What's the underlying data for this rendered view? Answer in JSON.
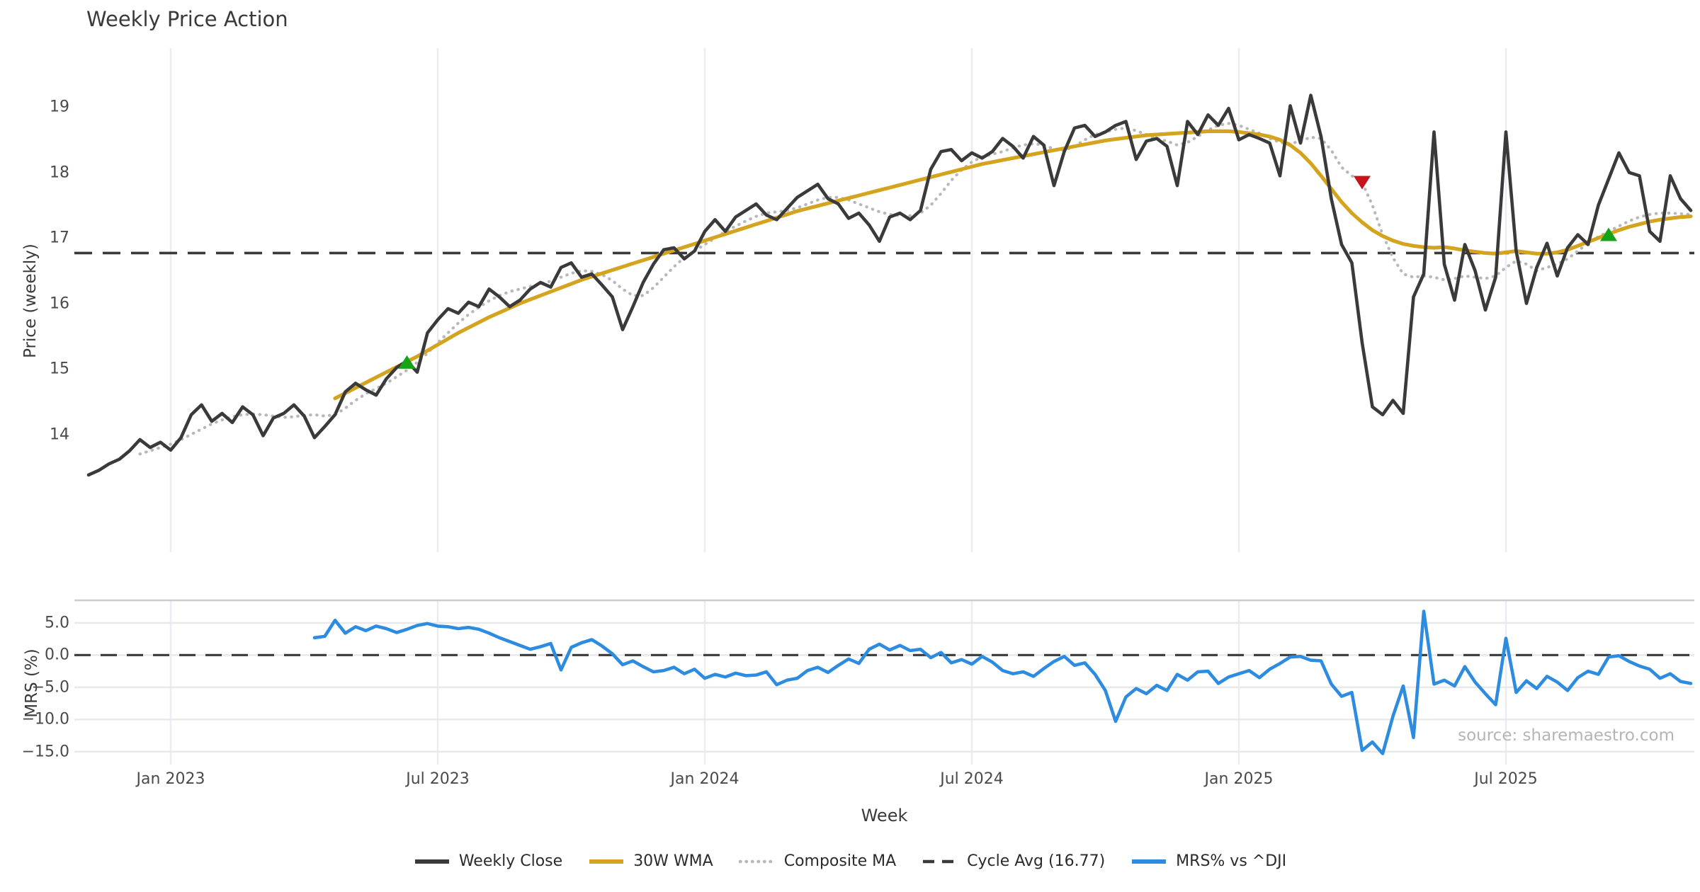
{
  "title": "Weekly Price Action",
  "source_note": "source: sharemaestro.com",
  "colors": {
    "weekly_close": "#3a3a3a",
    "wma_30w": "#d5a41f",
    "composite_ma": "#b8b8b8",
    "cycle_avg": "#3a3a3a",
    "mrs": "#2d8ce0",
    "buy_marker": "#17a317",
    "sell_marker": "#c4151c",
    "grid_vertical": "#ececf1",
    "grid_horizontal": "#e9e9e9",
    "panel_spine": "#cccccc",
    "tick_text": "#4a4a4a",
    "muted_text": "#b5b5b5"
  },
  "chart_data": {
    "type": "line",
    "title": "Weekly Price Action",
    "xlabel": "Week",
    "weeks_total": 157,
    "x_ticks": [
      {
        "index": 8,
        "label": "Jan 2023"
      },
      {
        "index": 34,
        "label": "Jul 2023"
      },
      {
        "index": 60,
        "label": "Jan 2024"
      },
      {
        "index": 86,
        "label": "Jul 2024"
      },
      {
        "index": 112,
        "label": "Jan 2025"
      },
      {
        "index": 138,
        "label": "Jul 2025"
      }
    ],
    "price_panel": {
      "ylabel": "Price (weekly)",
      "ylim": [
        12.2,
        19.9
      ],
      "yticks": [
        {
          "v": 19,
          "label": "19"
        },
        {
          "v": 18,
          "label": "18"
        },
        {
          "v": 17,
          "label": "17"
        },
        {
          "v": 16,
          "label": "16"
        },
        {
          "v": 15,
          "label": "15"
        },
        {
          "v": 14,
          "label": "14"
        }
      ],
      "cycle_avg": 16.77,
      "series": {
        "weekly_close": {
          "name": "Weekly Close",
          "start_index": 0,
          "values": [
            13.38,
            13.45,
            13.55,
            13.62,
            13.75,
            13.92,
            13.8,
            13.88,
            13.76,
            13.95,
            14.3,
            14.45,
            14.2,
            14.32,
            14.18,
            14.42,
            14.3,
            13.98,
            14.25,
            14.32,
            14.45,
            14.28,
            13.95,
            14.12,
            14.3,
            14.65,
            14.78,
            14.68,
            14.6,
            14.85,
            15.02,
            15.12,
            14.95,
            15.55,
            15.75,
            15.92,
            15.85,
            16.02,
            15.95,
            16.22,
            16.1,
            15.95,
            16.05,
            16.22,
            16.32,
            16.25,
            16.55,
            16.62,
            16.4,
            16.45,
            16.28,
            16.1,
            15.6,
            15.95,
            16.32,
            16.6,
            16.82,
            16.85,
            16.68,
            16.8,
            17.1,
            17.28,
            17.1,
            17.32,
            17.42,
            17.52,
            17.35,
            17.28,
            17.45,
            17.62,
            17.72,
            17.82,
            17.6,
            17.52,
            17.3,
            17.38,
            17.2,
            16.95,
            17.32,
            17.38,
            17.28,
            17.42,
            18.05,
            18.32,
            18.35,
            18.18,
            18.3,
            18.22,
            18.32,
            18.52,
            18.4,
            18.22,
            18.55,
            18.42,
            17.8,
            18.32,
            18.68,
            18.72,
            18.55,
            18.62,
            18.72,
            18.78,
            18.2,
            18.48,
            18.52,
            18.4,
            17.8,
            18.78,
            18.58,
            18.88,
            18.72,
            18.98,
            18.5,
            18.58,
            18.52,
            18.45,
            17.95,
            19.02,
            18.45,
            19.18,
            18.55,
            17.6,
            16.9,
            16.62,
            15.4,
            14.42,
            14.3,
            14.52,
            14.32,
            16.1,
            16.45,
            18.62,
            16.6,
            16.05,
            16.9,
            16.5,
            15.9,
            16.4,
            18.62,
            16.8,
            16.0,
            16.55,
            16.92,
            16.42,
            16.85,
            17.05,
            16.9,
            17.5,
            17.9,
            18.3,
            18.0,
            17.95,
            17.1,
            16.95,
            17.95,
            17.6,
            17.42
          ]
        },
        "wma_30w": {
          "name": "30W WMA",
          "start_index": 24,
          "values": [
            14.55,
            14.63,
            14.71,
            14.79,
            14.87,
            14.95,
            15.03,
            15.11,
            15.19,
            15.28,
            15.37,
            15.46,
            15.55,
            15.63,
            15.71,
            15.79,
            15.86,
            15.93,
            16.0,
            16.06,
            16.12,
            16.18,
            16.24,
            16.3,
            16.36,
            16.41,
            16.46,
            16.51,
            16.56,
            16.61,
            16.66,
            16.71,
            16.76,
            16.81,
            16.86,
            16.91,
            16.96,
            17.01,
            17.06,
            17.11,
            17.16,
            17.21,
            17.26,
            17.31,
            17.36,
            17.41,
            17.45,
            17.49,
            17.53,
            17.57,
            17.61,
            17.65,
            17.69,
            17.73,
            17.77,
            17.81,
            17.85,
            17.89,
            17.93,
            17.97,
            18.01,
            18.05,
            18.09,
            18.13,
            18.16,
            18.19,
            18.22,
            18.25,
            18.28,
            18.31,
            18.34,
            18.37,
            18.4,
            18.43,
            18.46,
            18.49,
            18.51,
            18.53,
            18.55,
            18.57,
            18.58,
            18.59,
            18.6,
            18.61,
            18.62,
            18.63,
            18.63,
            18.63,
            18.62,
            18.6,
            18.58,
            18.55,
            18.5,
            18.42,
            18.3,
            18.14,
            17.95,
            17.75,
            17.55,
            17.38,
            17.24,
            17.12,
            17.03,
            16.96,
            16.91,
            16.88,
            16.86,
            16.85,
            16.86,
            16.84,
            16.81,
            16.79,
            16.77,
            16.76,
            16.78,
            16.8,
            16.78,
            16.76,
            16.76,
            16.78,
            16.82,
            16.88,
            16.94,
            17.0,
            17.06,
            17.12,
            17.17,
            17.21,
            17.25,
            17.28,
            17.3,
            17.32,
            17.33
          ]
        },
        "composite_ma": {
          "name": "Composite MA",
          "start_index": 5,
          "values": [
            13.7,
            13.75,
            13.8,
            13.85,
            13.92,
            14.0,
            14.08,
            14.16,
            14.22,
            14.27,
            14.3,
            14.31,
            14.3,
            14.28,
            14.26,
            14.27,
            14.29,
            14.3,
            14.28,
            14.3,
            14.4,
            14.52,
            14.62,
            14.7,
            14.78,
            14.88,
            14.98,
            15.1,
            15.24,
            15.4,
            15.55,
            15.7,
            15.83,
            15.94,
            16.04,
            16.12,
            16.18,
            16.22,
            16.26,
            16.3,
            16.34,
            16.4,
            16.46,
            16.5,
            16.49,
            16.44,
            16.35,
            16.22,
            16.12,
            16.12,
            16.24,
            16.4,
            16.56,
            16.7,
            16.8,
            16.9,
            17.0,
            17.1,
            17.18,
            17.26,
            17.33,
            17.38,
            17.4,
            17.42,
            17.46,
            17.52,
            17.58,
            17.62,
            17.62,
            17.58,
            17.52,
            17.46,
            17.4,
            17.36,
            17.34,
            17.34,
            17.38,
            17.5,
            17.68,
            17.88,
            18.04,
            18.16,
            18.24,
            18.28,
            18.32,
            18.38,
            18.42,
            18.44,
            18.42,
            18.36,
            18.34,
            18.4,
            18.5,
            18.58,
            18.62,
            18.66,
            18.68,
            18.64,
            18.58,
            18.52,
            18.48,
            18.42,
            18.46,
            18.55,
            18.65,
            18.72,
            18.75,
            18.72,
            18.66,
            18.6,
            18.52,
            18.46,
            18.44,
            18.48,
            18.54,
            18.52,
            18.34,
            18.08,
            17.95,
            17.85,
            17.5,
            17.05,
            16.7,
            16.45,
            16.4,
            16.42,
            16.4,
            16.36,
            16.38,
            16.42,
            16.4,
            16.38,
            16.42,
            16.55,
            16.65,
            16.6,
            16.5,
            16.55,
            16.6,
            16.68,
            16.8,
            16.92,
            17.02,
            17.1,
            17.18,
            17.26,
            17.32,
            17.36,
            17.38,
            17.38,
            17.37,
            17.36
          ]
        }
      },
      "signals": {
        "buy": [
          {
            "week_index": 31,
            "value": 15.1
          },
          {
            "week_index": 148,
            "value": 17.05
          }
        ],
        "sell": [
          {
            "week_index": 124,
            "value": 17.85
          }
        ]
      }
    },
    "mrs_panel": {
      "ylabel": "MRS (%)",
      "ylim": [
        -17.0,
        8.5
      ],
      "yticks": [
        {
          "v": 5,
          "label": "5.0"
        },
        {
          "v": 0,
          "label": "0.0"
        },
        {
          "v": -5,
          "label": "−5.0"
        },
        {
          "v": -10,
          "label": "−10.0"
        },
        {
          "v": -15,
          "label": "−15.0"
        }
      ],
      "zero_line": 0,
      "series": {
        "mrs": {
          "name": "MRS% vs ^DJI",
          "start_index": 22,
          "values": [
            2.7,
            2.9,
            5.4,
            3.4,
            4.4,
            3.8,
            4.5,
            4.1,
            3.5,
            4.0,
            4.6,
            4.9,
            4.5,
            4.4,
            4.1,
            4.3,
            4.0,
            3.4,
            2.7,
            2.1,
            1.5,
            0.9,
            1.3,
            1.8,
            -2.3,
            1.2,
            1.9,
            2.4,
            1.4,
            0.2,
            -1.5,
            -0.9,
            -1.8,
            -2.6,
            -2.4,
            -1.9,
            -2.9,
            -2.2,
            -3.6,
            -3.0,
            -3.4,
            -2.8,
            -3.2,
            -3.1,
            -2.6,
            -4.6,
            -3.9,
            -3.6,
            -2.4,
            -1.9,
            -2.7,
            -1.6,
            -0.6,
            -1.3,
            0.9,
            1.7,
            0.8,
            1.5,
            0.7,
            0.9,
            -0.4,
            0.4,
            -1.2,
            -0.7,
            -1.4,
            -0.2,
            -1.1,
            -2.4,
            -2.9,
            -2.6,
            -3.3,
            -2.1,
            -1.0,
            -0.2,
            -1.6,
            -1.2,
            -3.0,
            -5.5,
            -10.3,
            -6.5,
            -5.2,
            -6.0,
            -4.7,
            -5.5,
            -3.0,
            -3.9,
            -2.6,
            -2.5,
            -4.4,
            -3.4,
            -2.9,
            -2.4,
            -3.5,
            -2.2,
            -1.3,
            -0.3,
            -0.2,
            -0.8,
            -0.9,
            -4.5,
            -6.4,
            -5.8,
            -14.8,
            -13.5,
            -15.3,
            -9.5,
            -4.8,
            -12.8,
            6.8,
            -4.5,
            -3.9,
            -4.8,
            -1.8,
            -4.2,
            -6.0,
            -7.7,
            2.6,
            -5.8,
            -4.0,
            -5.2,
            -3.3,
            -4.2,
            -5.5,
            -3.5,
            -2.5,
            -3.0,
            -0.3,
            -0.1,
            -1.0,
            -1.7,
            -2.2,
            -3.6,
            -2.9,
            -4.1,
            -4.4
          ]
        }
      }
    }
  },
  "legend": [
    {
      "label": "Weekly Close",
      "line": "solid",
      "color": "#3a3a3a"
    },
    {
      "label": "30W WMA",
      "line": "solid",
      "color": "#d5a41f"
    },
    {
      "label": "Composite MA",
      "line": "dotted",
      "color": "#b8b8b8"
    },
    {
      "label": "Cycle Avg (16.77)",
      "line": "dashed",
      "color": "#3a3a3a"
    },
    {
      "label": "MRS% vs ^DJI",
      "line": "solid",
      "color": "#2d8ce0"
    }
  ]
}
